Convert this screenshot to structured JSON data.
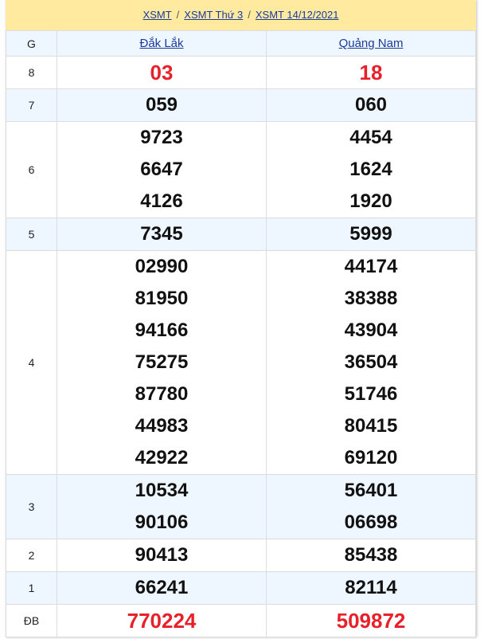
{
  "breadcrumb": [
    "XSMT",
    "XSMT Thứ 3",
    "XSMT 14/12/2021"
  ],
  "header": {
    "g": "G",
    "provinces": [
      "Đắk Lắk",
      "Quảng Nam"
    ]
  },
  "rows": [
    {
      "label": "8",
      "a": [
        "03"
      ],
      "b": [
        "18"
      ],
      "red": true
    },
    {
      "label": "7",
      "a": [
        "059"
      ],
      "b": [
        "060"
      ]
    },
    {
      "label": "6",
      "a": [
        "9723",
        "6647",
        "4126"
      ],
      "b": [
        "4454",
        "1624",
        "1920"
      ]
    },
    {
      "label": "5",
      "a": [
        "7345"
      ],
      "b": [
        "5999"
      ]
    },
    {
      "label": "4",
      "a": [
        "02990",
        "81950",
        "94166",
        "75275",
        "87780",
        "44983",
        "42922"
      ],
      "b": [
        "44174",
        "38388",
        "43904",
        "36504",
        "51746",
        "80415",
        "69120"
      ]
    },
    {
      "label": "3",
      "a": [
        "10534",
        "90106"
      ],
      "b": [
        "56401",
        "06698"
      ]
    },
    {
      "label": "2",
      "a": [
        "90413"
      ],
      "b": [
        "85438"
      ]
    },
    {
      "label": "1",
      "a": [
        "66241"
      ],
      "b": [
        "82114"
      ]
    },
    {
      "label": "ĐB",
      "a": [
        "770224"
      ],
      "b": [
        "509872"
      ],
      "red": true
    }
  ],
  "colors": {
    "red": "#e8202a",
    "link": "#1a3a9c",
    "breadcrumb_bg": "#ffeaa0",
    "alt_row": "#eef6ff"
  }
}
